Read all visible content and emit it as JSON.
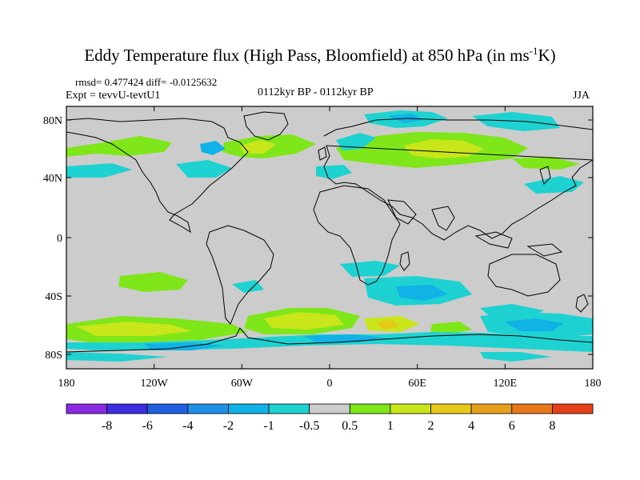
{
  "title": {
    "main": "Eddy Temperature flux (High Pass, Bloomfield) at 850 hPa (in ms",
    "sup": "-1",
    "tail": "K)"
  },
  "stats": "rmsd= 0.477424  diff= -0.0125632",
  "experiment": "Expt = tevvU-tevtU1",
  "period": "0112kyr BP - 0112kyr BP",
  "season": "JJA",
  "map": {
    "projection": "cylindrical-equidistant",
    "background_color": "#cccccc",
    "lat_ticks": [
      "80N",
      "40N",
      "0",
      "40S",
      "80S"
    ],
    "lon_ticks": [
      "180",
      "120W",
      "60W",
      "0",
      "60E",
      "120E",
      "180"
    ]
  },
  "colorbar": {
    "labels": [
      "-8",
      "-6",
      "-4",
      "-2",
      "-1",
      "-0.5",
      "0.5",
      "1",
      "2",
      "4",
      "6",
      "8"
    ],
    "colors": [
      "#8a2be2",
      "#3c2ee0",
      "#1e5fe0",
      "#1e90e6",
      "#11b2e6",
      "#1ed2d2",
      "#cccccc",
      "#7fe619",
      "#c8e619",
      "#e6c819",
      "#e6a019",
      "#e67819",
      "#e64019"
    ]
  }
}
